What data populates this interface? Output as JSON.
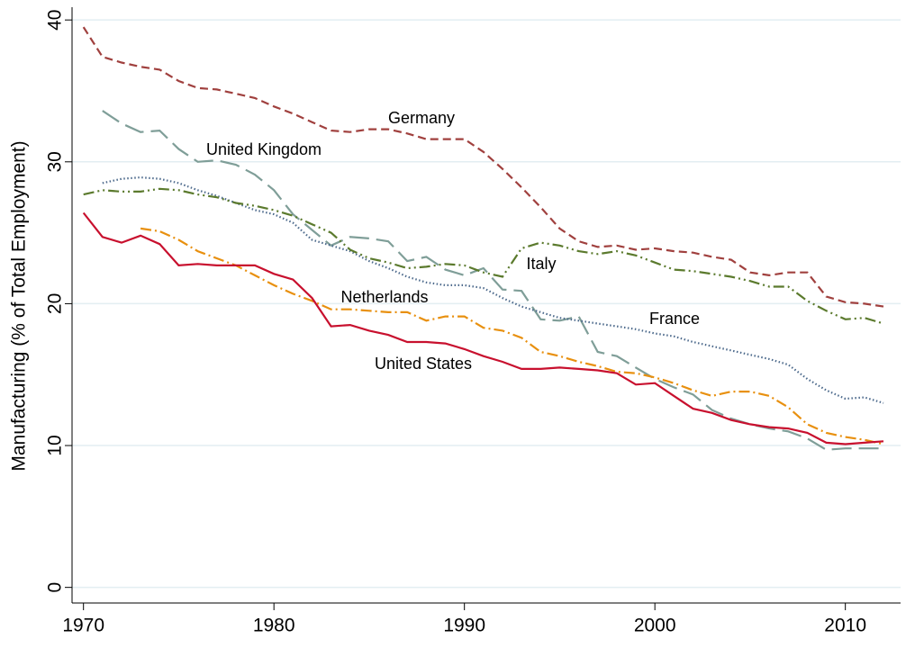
{
  "chart_data": {
    "type": "line",
    "y_label": "Manufacturing (% of Total Employment)",
    "x": [
      1970,
      1971,
      1972,
      1973,
      1974,
      1975,
      1976,
      1977,
      1978,
      1979,
      1980,
      1981,
      1982,
      1983,
      1984,
      1985,
      1986,
      1987,
      1988,
      1989,
      1990,
      1991,
      1992,
      1993,
      1994,
      1995,
      1996,
      1997,
      1998,
      1999,
      2000,
      2001,
      2002,
      2003,
      2004,
      2005,
      2006,
      2007,
      2008,
      2009,
      2010,
      2011,
      2012
    ],
    "xlim": [
      1969.4,
      2012.9
    ],
    "xticks": [
      1970,
      1980,
      1990,
      2000,
      2010
    ],
    "ylim": [
      -1.1,
      40.9
    ],
    "yticks": [
      0,
      10,
      20,
      30,
      40
    ],
    "grid": true,
    "series": [
      {
        "name": "Germany",
        "color": "#a0403e",
        "values": [
          39.5,
          37.4,
          37.0,
          36.7,
          36.5,
          35.7,
          35.2,
          35.1,
          34.8,
          34.5,
          33.9,
          33.4,
          32.8,
          32.2,
          32.1,
          32.3,
          32.3,
          32.0,
          31.6,
          31.6,
          31.6,
          30.7,
          29.5,
          28.2,
          26.8,
          25.3,
          24.4,
          24.0,
          24.1,
          23.8,
          23.9,
          23.7,
          23.6,
          23.3,
          23.1,
          22.2,
          22.0,
          22.2,
          22.2,
          20.5,
          20.1,
          20.0,
          19.8
        ]
      },
      {
        "name": "United Kingdom",
        "color": "#7f9e98",
        "values": [
          null,
          33.6,
          32.7,
          32.1,
          32.2,
          30.9,
          30.0,
          30.1,
          29.8,
          29.1,
          28.0,
          26.3,
          25.2,
          24.1,
          24.7,
          24.6,
          24.4,
          23.0,
          23.3,
          22.4,
          22.0,
          22.5,
          21.0,
          20.9,
          18.9,
          18.8,
          19.1,
          16.6,
          16.3,
          15.5,
          14.7,
          14.1,
          13.6,
          12.5,
          11.9,
          11.5,
          11.2,
          11.0,
          10.5,
          9.7,
          9.8,
          9.8,
          9.8
        ]
      },
      {
        "name": "France",
        "color": "#4d6a8c",
        "values": [
          null,
          28.5,
          28.8,
          28.9,
          28.8,
          28.5,
          28.0,
          27.6,
          27.1,
          26.6,
          26.3,
          25.7,
          24.5,
          24.1,
          23.7,
          23.0,
          22.5,
          21.9,
          21.5,
          21.3,
          21.3,
          21.1,
          20.4,
          19.8,
          19.4,
          19.0,
          18.8,
          18.6,
          18.4,
          18.2,
          17.9,
          17.7,
          17.3,
          17.0,
          16.7,
          16.4,
          16.1,
          15.7,
          14.7,
          13.9,
          13.3,
          13.4,
          13.0
        ]
      },
      {
        "name": "Italy",
        "color": "#5b7a2d",
        "values": [
          27.7,
          28.0,
          27.9,
          27.9,
          28.1,
          28.0,
          27.7,
          27.5,
          27.1,
          26.9,
          26.6,
          26.2,
          25.6,
          25.0,
          23.8,
          23.2,
          22.9,
          22.5,
          22.6,
          22.8,
          22.7,
          22.2,
          21.9,
          23.9,
          24.3,
          24.1,
          23.7,
          23.5,
          23.7,
          23.4,
          22.9,
          22.4,
          22.3,
          22.1,
          21.9,
          21.6,
          21.2,
          21.2,
          20.2,
          19.5,
          18.9,
          19.0,
          18.6
        ]
      },
      {
        "name": "Netherlands",
        "color": "#e8900f",
        "values": [
          null,
          null,
          null,
          25.3,
          25.1,
          24.5,
          23.7,
          23.2,
          22.7,
          22.0,
          21.3,
          20.7,
          20.2,
          19.6,
          19.6,
          19.5,
          19.4,
          19.4,
          18.8,
          19.1,
          19.1,
          18.3,
          18.1,
          17.6,
          16.6,
          16.3,
          15.9,
          15.6,
          15.2,
          15.1,
          14.8,
          14.4,
          13.9,
          13.5,
          13.8,
          13.8,
          13.5,
          12.7,
          11.5,
          10.9,
          10.6,
          10.4,
          10.1
        ]
      },
      {
        "name": "United States",
        "color": "#c8102e",
        "values": [
          26.4,
          24.7,
          24.3,
          24.8,
          24.2,
          22.7,
          22.8,
          22.7,
          22.7,
          22.7,
          22.1,
          21.7,
          20.4,
          18.4,
          18.5,
          18.1,
          17.8,
          17.3,
          17.3,
          17.2,
          16.8,
          16.3,
          15.9,
          15.4,
          15.4,
          15.5,
          15.4,
          15.3,
          15.1,
          14.3,
          14.4,
          13.5,
          12.6,
          12.3,
          11.8,
          11.5,
          11.3,
          11.2,
          10.9,
          10.2,
          10.1,
          10.2,
          10.3
        ]
      }
    ]
  }
}
